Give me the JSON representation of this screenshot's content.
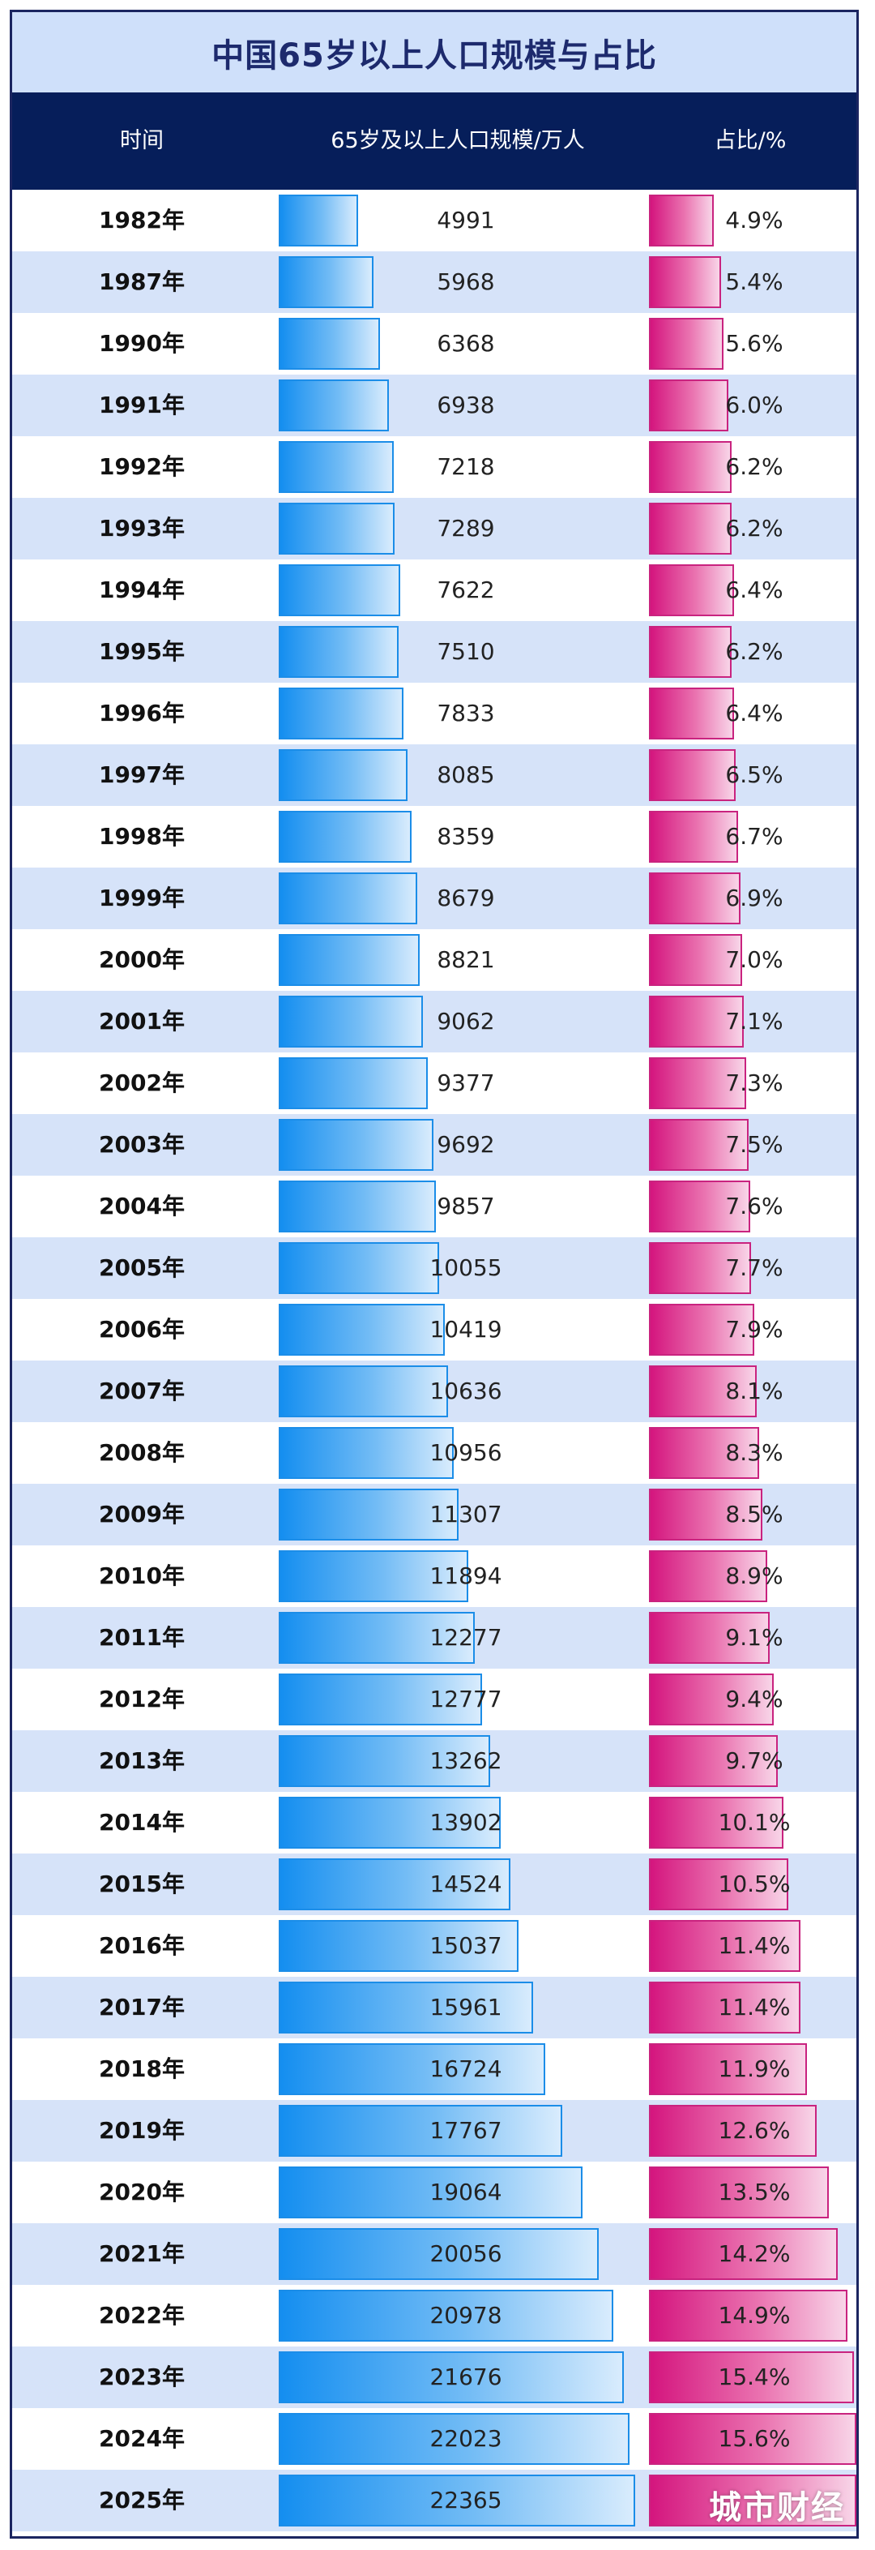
{
  "chart_data": {
    "type": "table",
    "title": "中国65岁以上人口规模与占比",
    "columns": [
      "时间",
      "65岁及以上人口规模/万人",
      "占比/%"
    ],
    "categories": [
      "1982年",
      "1987年",
      "1990年",
      "1991年",
      "1992年",
      "1993年",
      "1994年",
      "1995年",
      "1996年",
      "1997年",
      "1998年",
      "1999年",
      "2000年",
      "2001年",
      "2002年",
      "2003年",
      "2004年",
      "2005年",
      "2006年",
      "2007年",
      "2008年",
      "2009年",
      "2010年",
      "2011年",
      "2012年",
      "2013年",
      "2014年",
      "2015年",
      "2016年",
      "2017年",
      "2018年",
      "2019年",
      "2020年",
      "2021年",
      "2022年",
      "2023年",
      "2024年",
      "2025年"
    ],
    "series": [
      {
        "name": "65岁及以上人口规模/万人",
        "values": [
          4991,
          5968,
          6368,
          6938,
          7218,
          7289,
          7622,
          7510,
          7833,
          8085,
          8359,
          8679,
          8821,
          9062,
          9377,
          9692,
          9857,
          10055,
          10419,
          10636,
          10956,
          11307,
          11894,
          12277,
          12777,
          13262,
          13902,
          14524,
          15037,
          15961,
          16724,
          17767,
          19064,
          20056,
          20978,
          21676,
          22023,
          22365
        ],
        "color": "#148ef0"
      },
      {
        "name": "占比/%",
        "values": [
          4.9,
          5.4,
          5.6,
          6.0,
          6.2,
          6.2,
          6.4,
          6.2,
          6.4,
          6.5,
          6.7,
          6.9,
          7.0,
          7.1,
          7.3,
          7.5,
          7.6,
          7.7,
          7.9,
          8.1,
          8.3,
          8.5,
          8.9,
          9.1,
          9.4,
          9.7,
          10.1,
          10.5,
          11.4,
          11.4,
          11.9,
          12.6,
          13.5,
          14.2,
          14.9,
          15.4,
          15.6,
          15.6
        ],
        "labels": [
          "4.9%",
          "5.4%",
          "5.6%",
          "6.0%",
          "6.2%",
          "6.2%",
          "6.4%",
          "6.2%",
          "6.4%",
          "6.5%",
          "6.7%",
          "6.9%",
          "7.0%",
          "7.1%",
          "7.3%",
          "7.5%",
          "7.6%",
          "7.7%",
          "7.9%",
          "8.1%",
          "8.3%",
          "8.5%",
          "8.9%",
          "9.1%",
          "9.4%",
          "9.7%",
          "10.1%",
          "10.5%",
          "11.4%",
          "11.4%",
          "11.9%",
          "12.6%",
          "13.5%",
          "14.2%",
          "14.9%",
          "15.4%",
          "15.6%",
          ""
        ],
        "color": "#d4157e"
      }
    ]
  },
  "watermark": "城市财经"
}
